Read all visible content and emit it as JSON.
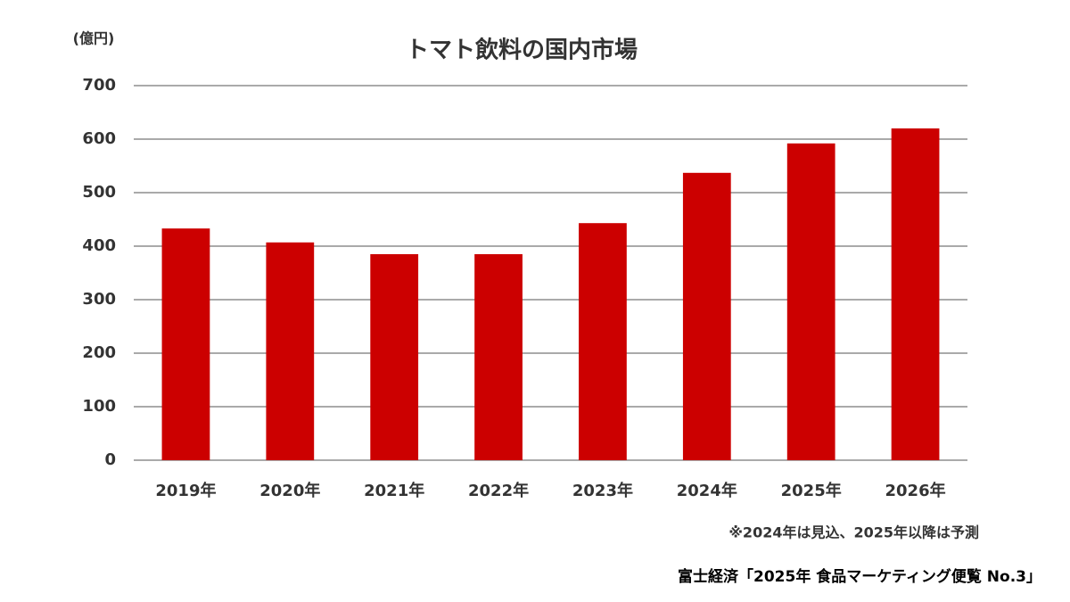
{
  "chart_data": {
    "type": "bar",
    "title": "トマト飲料の国内市場",
    "y_unit": "(億円)",
    "categories": [
      "2019年",
      "2020年",
      "2021年",
      "2022年",
      "2023年",
      "2024年",
      "2025年",
      "2026年"
    ],
    "values": [
      433,
      407,
      385,
      385,
      443,
      537,
      592,
      620
    ],
    "color": "#cc0000",
    "ylim": [
      0,
      700
    ],
    "yticks": [
      0,
      100,
      200,
      300,
      400,
      500,
      600,
      700
    ],
    "grid": true,
    "note": "※2024年は見込、2025年以降は予測",
    "source": "富士経済「2025年 食品マーケティング便覧 No.3」"
  }
}
